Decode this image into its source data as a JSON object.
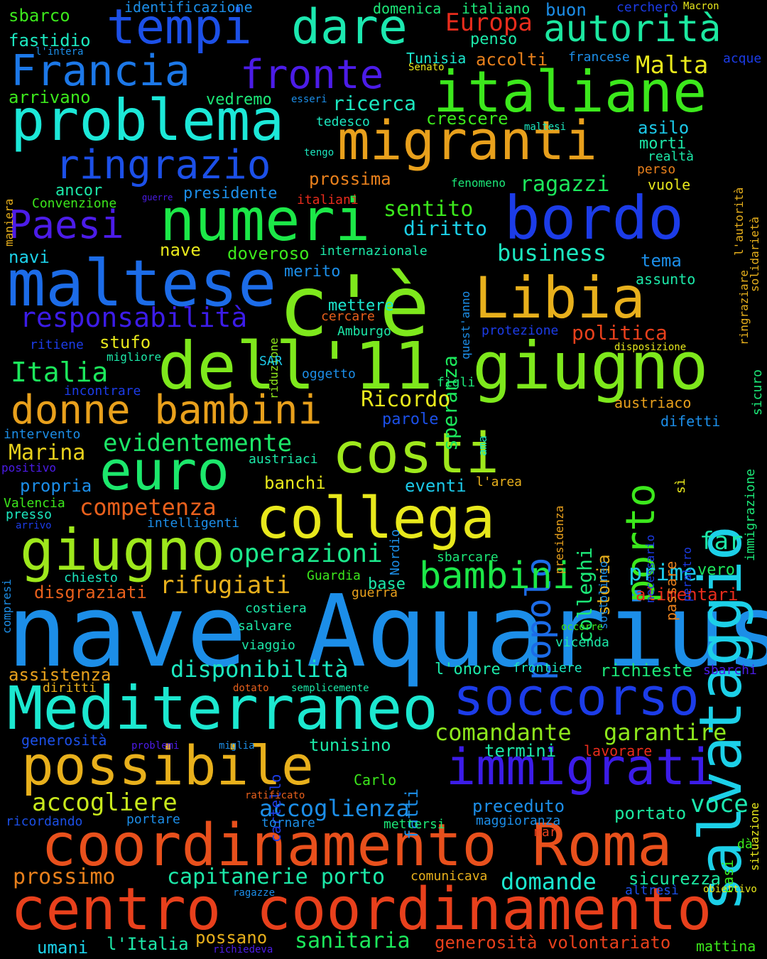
{
  "word_cloud": {
    "background": "#000000",
    "words": [
      {
        "text": "nave Aquarius",
        "color": "#1c8ee8"
      },
      {
        "text": "centro coordinamento",
        "color": "#e8401c"
      },
      {
        "text": "coordinamento Roma",
        "color": "#e8501c"
      },
      {
        "text": "c'è",
        "color": "#7ee81c"
      },
      {
        "text": "Mediterraneo",
        "color": "#1ce8d0"
      },
      {
        "text": "dell'11 giugno",
        "color": "#7ee81c"
      },
      {
        "text": "salvataggio",
        "color": "#1cd0e8"
      },
      {
        "text": "migranti",
        "color": "#e8a01c"
      },
      {
        "text": "italiane",
        "color": "#3ce81c"
      },
      {
        "text": "problema",
        "color": "#1ce8d8"
      },
      {
        "text": "numeri",
        "color": "#1ce848"
      },
      {
        "text": "bordo",
        "color": "#1c3ce8"
      },
      {
        "text": "maltese",
        "color": "#1c6ce8"
      },
      {
        "text": "Libia",
        "color": "#e8b01c"
      },
      {
        "text": "possibile",
        "color": "#e8b01c"
      },
      {
        "text": "soccorso",
        "color": "#1c3ce8"
      },
      {
        "text": "immigrati",
        "color": "#3c1ce8"
      },
      {
        "text": "costi",
        "color": "#9ee81c"
      },
      {
        "text": "collega",
        "color": "#e8e81c"
      },
      {
        "text": "euro",
        "color": "#1ce86c"
      },
      {
        "text": "giugno",
        "color": "#9ee81c"
      },
      {
        "text": "donne bambini",
        "color": "#e8a01c"
      },
      {
        "text": "tempi",
        "color": "#1c50e8"
      },
      {
        "text": "dare",
        "color": "#1ce8b0"
      },
      {
        "text": "Francia",
        "color": "#1c78e8"
      },
      {
        "text": "fronte",
        "color": "#4c1ce8"
      },
      {
        "text": "autorità",
        "color": "#1ce8a0"
      },
      {
        "text": "ringrazio",
        "color": "#1c50e8"
      },
      {
        "text": "Paesi",
        "color": "#4c1ce8"
      },
      {
        "text": "porto",
        "color": "#3ce81c"
      },
      {
        "text": "popolo",
        "color": "#1c6ce8"
      },
      {
        "text": "bambini",
        "color": "#1ce848"
      },
      {
        "text": "responsabilità",
        "color": "#3c1ce8"
      },
      {
        "text": "Italia",
        "color": "#1ce85c"
      },
      {
        "text": "operazioni",
        "color": "#1ce88c"
      },
      {
        "text": "rifugiati",
        "color": "#e8b01c"
      },
      {
        "text": "competenza",
        "color": "#e8601c"
      },
      {
        "text": "evidentemente",
        "color": "#1ce868"
      },
      {
        "text": "Marina",
        "color": "#e8d01c"
      },
      {
        "text": "disponibilità",
        "color": "#1ce8c0"
      },
      {
        "text": "comandante",
        "color": "#8ee81c"
      },
      {
        "text": "garantire",
        "color": "#8ee81c"
      },
      {
        "text": "accogliere",
        "color": "#c8e81c"
      },
      {
        "text": "accoglienza",
        "color": "#1c8ee8"
      },
      {
        "text": "capitanerie porto",
        "color": "#1ce8a8"
      },
      {
        "text": "domande",
        "color": "#1ce8d0"
      },
      {
        "text": "prossimo",
        "color": "#e8801c"
      },
      {
        "text": "sanitaria",
        "color": "#1ce85c"
      },
      {
        "text": "generosità volontariato",
        "color": "#e8401c"
      },
      {
        "text": "Europa",
        "color": "#e82c1c"
      },
      {
        "text": "Malta",
        "color": "#e8e81c"
      },
      {
        "text": "business",
        "color": "#1ce8c0"
      },
      {
        "text": "sentito",
        "color": "#3ce81c"
      },
      {
        "text": "diritto",
        "color": "#1cd0e8"
      },
      {
        "text": "ragazzi",
        "color": "#1ce85c"
      },
      {
        "text": "ricerca",
        "color": "#1ce8c0"
      },
      {
        "text": "crescere",
        "color": "#3ce81c"
      },
      {
        "text": "speranza",
        "color": "#1ce85c"
      },
      {
        "text": "colleghi",
        "color": "#1ce878"
      },
      {
        "text": "storia",
        "color": "#e8b01c"
      },
      {
        "text": "politica",
        "color": "#e8401c"
      },
      {
        "text": "far",
        "color": "#1ce8a8"
      },
      {
        "text": "prime",
        "color": "#1cc8e8"
      },
      {
        "text": "vero",
        "color": "#1ce85c"
      },
      {
        "text": "alimentari",
        "color": "#e82c1c"
      },
      {
        "text": "Ricordo",
        "color": "#e8e81c"
      },
      {
        "text": "voce",
        "color": "#1ce8b0"
      },
      {
        "text": "sicurezza",
        "color": "#1ce8a0"
      },
      {
        "text": "tunisino",
        "color": "#1ce8a8"
      },
      {
        "text": "preceduto",
        "color": "#1c8ee8"
      },
      {
        "text": "portato",
        "color": "#1ce8a0"
      },
      {
        "text": "richieste",
        "color": "#1ce878"
      },
      {
        "text": "termini",
        "color": "#1ce8a8"
      },
      {
        "text": "lavorare",
        "color": "#e82c1c"
      },
      {
        "text": "umani",
        "color": "#1cd0e8"
      },
      {
        "text": "l'Italia",
        "color": "#1ce8a8"
      },
      {
        "text": "possano",
        "color": "#e8b01c"
      },
      {
        "text": "mattina",
        "color": "#3ce81c"
      },
      {
        "text": "fatti",
        "color": "#1c8ee8"
      },
      {
        "text": "cartello",
        "color": "#1c3ce8"
      },
      {
        "text": "Carlo",
        "color": "#3ce81c"
      },
      {
        "text": "situazione",
        "color": "#e8e81c"
      },
      {
        "text": "casi",
        "color": "#3ce81c"
      },
      {
        "text": "dà",
        "color": "#3ce81c"
      },
      {
        "text": "sbarco",
        "color": "#3ce81c"
      },
      {
        "text": "identificazione",
        "color": "#1c8ee8"
      },
      {
        "text": "domenica",
        "color": "#1ce878"
      },
      {
        "text": "italiano",
        "color": "#1ce878"
      },
      {
        "text": "buon",
        "color": "#1c8ee8"
      },
      {
        "text": "cercherò",
        "color": "#1c3ce8"
      },
      {
        "text": "Macron",
        "color": "#e8e81c"
      },
      {
        "text": "fastidio",
        "color": "#1ce8c0"
      },
      {
        "text": "l'intera",
        "color": "#1c8ee8"
      },
      {
        "text": "penso",
        "color": "#1ce8a8"
      },
      {
        "text": "Tunisia",
        "color": "#1ce8d0"
      },
      {
        "text": "Senato",
        "color": "#e8e81c"
      },
      {
        "text": "accolti",
        "color": "#e8801c"
      },
      {
        "text": "francese",
        "color": "#1c8ee8"
      },
      {
        "text": "acque",
        "color": "#1c3ce8"
      },
      {
        "text": "arrivano",
        "color": "#3ce81c"
      },
      {
        "text": "vedremo",
        "color": "#1ce878"
      },
      {
        "text": "esseri",
        "color": "#1c8ee8"
      },
      {
        "text": "tedesco",
        "color": "#1ce8c0"
      },
      {
        "text": "maltesi",
        "color": "#1ce8c0"
      },
      {
        "text": "asilo",
        "color": "#1cc8e8"
      },
      {
        "text": "morti",
        "color": "#1ce8a8"
      },
      {
        "text": "realtà",
        "color": "#1ce8a8"
      },
      {
        "text": "perso",
        "color": "#e8801c"
      },
      {
        "text": "l'autorità",
        "color": "#e8b01c"
      },
      {
        "text": "solidarietà",
        "color": "#e8b01c"
      },
      {
        "text": "ringraziare",
        "color": "#e8b01c"
      },
      {
        "text": "maniera",
        "color": "#e8b01c"
      },
      {
        "text": "tengo",
        "color": "#1ce8c0"
      },
      {
        "text": "prossima",
        "color": "#e8801c"
      },
      {
        "text": "fenomeno",
        "color": "#1ce878"
      },
      {
        "text": "vuole",
        "color": "#e8e81c"
      },
      {
        "text": "ancor",
        "color": "#1ce8a8"
      },
      {
        "text": "guerre",
        "color": "#4c1ce8"
      },
      {
        "text": "presidente",
        "color": "#1c8ee8"
      },
      {
        "text": "italiani",
        "color": "#e82c1c"
      },
      {
        "text": "Convenzione",
        "color": "#3ce81c"
      },
      {
        "text": "navi",
        "color": "#1cd0e8"
      },
      {
        "text": "nave",
        "color": "#e8e81c"
      },
      {
        "text": "doveroso",
        "color": "#3ce81c"
      },
      {
        "text": "internazionale",
        "color": "#1ce8a8"
      },
      {
        "text": "tema",
        "color": "#1c8ee8"
      },
      {
        "text": "assunto",
        "color": "#1ce8a8"
      },
      {
        "text": "quest'anno",
        "color": "#1c8ee8"
      },
      {
        "text": "merito",
        "color": "#1c8ee8"
      },
      {
        "text": "riduzione",
        "color": "#8ee81c"
      },
      {
        "text": "sicuro",
        "color": "#1ce878"
      },
      {
        "text": "mettere",
        "color": "#1ce8d0"
      },
      {
        "text": "cercare",
        "color": "#e8601c"
      },
      {
        "text": "immigrazione",
        "color": "#1ce878"
      },
      {
        "text": "Amburgo",
        "color": "#1ce8a8"
      },
      {
        "text": "protezione",
        "color": "#1c3ce8"
      },
      {
        "text": "disposizione",
        "color": "#e8e81c"
      },
      {
        "text": "ritiene",
        "color": "#1c3ce8"
      },
      {
        "text": "stufo",
        "color": "#e8e81c"
      },
      {
        "text": "migliore",
        "color": "#1ce8a8"
      },
      {
        "text": "SAR",
        "color": "#1cc8e8"
      },
      {
        "text": "oggetto",
        "color": "#1c8ee8"
      },
      {
        "text": "figli",
        "color": "#1ce878"
      },
      {
        "text": "incontrare",
        "color": "#1c3ce8"
      },
      {
        "text": "austriaco",
        "color": "#e8a01c"
      },
      {
        "text": "parole",
        "color": "#1c50e8"
      },
      {
        "text": "ama",
        "color": "#1ce8c0"
      },
      {
        "text": "presidenza",
        "color": "#e8a01c"
      },
      {
        "text": "difetti",
        "color": "#1c8ee8"
      },
      {
        "text": "intervento",
        "color": "#1c8ee8"
      },
      {
        "text": "positivo",
        "color": "#4c1ce8"
      },
      {
        "text": "austriaci",
        "color": "#1ce8a8"
      },
      {
        "text": "necessario",
        "color": "#1c3ce8"
      },
      {
        "text": "passare",
        "color": "#e8801c"
      },
      {
        "text": "sì",
        "color": "#e8e81c"
      },
      {
        "text": "peraltro",
        "color": "#1c3ce8"
      },
      {
        "text": "propria",
        "color": "#1c8ee8"
      },
      {
        "text": "banchi",
        "color": "#e8e81c"
      },
      {
        "text": "eventi",
        "color": "#1cc8e8"
      },
      {
        "text": "l'area",
        "color": "#e8b01c"
      },
      {
        "text": "Nordio",
        "color": "#1c8ee8"
      },
      {
        "text": "sottolineo",
        "color": "#1c8ee8"
      },
      {
        "text": "Valencia",
        "color": "#3ce81c"
      },
      {
        "text": "presso",
        "color": "#1ce8c0"
      },
      {
        "text": "arrivo",
        "color": "#1c3ce8"
      },
      {
        "text": "intelligenti",
        "color": "#1c8ee8"
      },
      {
        "text": "compresi",
        "color": "#1c8ee8"
      },
      {
        "text": "sbarcare",
        "color": "#1ce878"
      },
      {
        "text": "chiesto",
        "color": "#1ce8c0"
      },
      {
        "text": "Guardia",
        "color": "#3ce81c"
      },
      {
        "text": "base",
        "color": "#1ce8a8"
      },
      {
        "text": "disgraziati",
        "color": "#e8601c"
      },
      {
        "text": "guerra",
        "color": "#e8a01c"
      },
      {
        "text": "costiera",
        "color": "#1ce8a8"
      },
      {
        "text": "salvare",
        "color": "#1ce8a8"
      },
      {
        "text": "occorre",
        "color": "#3ce81c"
      },
      {
        "text": "viaggio",
        "color": "#1ce8a8"
      },
      {
        "text": "vicenda",
        "color": "#1ce8a8"
      },
      {
        "text": "assistenza",
        "color": "#e8a01c"
      },
      {
        "text": "l'onore",
        "color": "#1ce8a8"
      },
      {
        "text": "frontiere",
        "color": "#1ce8c0"
      },
      {
        "text": "sbarchi",
        "color": "#4c1ce8"
      },
      {
        "text": "diritti",
        "color": "#e8b01c"
      },
      {
        "text": "dotato",
        "color": "#e8601c"
      },
      {
        "text": "semplicemente",
        "color": "#1ce8a8"
      },
      {
        "text": "generosità",
        "color": "#1c50e8"
      },
      {
        "text": "problemi",
        "color": "#4c1ce8"
      },
      {
        "text": "miglia",
        "color": "#1c8ee8"
      },
      {
        "text": "ratificato",
        "color": "#e8601c"
      },
      {
        "text": "tornare",
        "color": "#1c8ee8"
      },
      {
        "text": "mettersi",
        "color": "#1ce878"
      },
      {
        "text": "maggioranza",
        "color": "#1c8ee8"
      },
      {
        "text": "mar",
        "color": "#e8401c"
      },
      {
        "text": "ricordando",
        "color": "#1c50e8"
      },
      {
        "text": "portare",
        "color": "#1c8ee8"
      },
      {
        "text": "comunicava",
        "color": "#e8b01c"
      },
      {
        "text": "altresì",
        "color": "#1c50e8"
      },
      {
        "text": "obiettivo",
        "color": "#e8e81c"
      },
      {
        "text": "ragazze",
        "color": "#1c8ee8"
      },
      {
        "text": "richiedeva",
        "color": "#4c1ce8"
      }
    ]
  }
}
